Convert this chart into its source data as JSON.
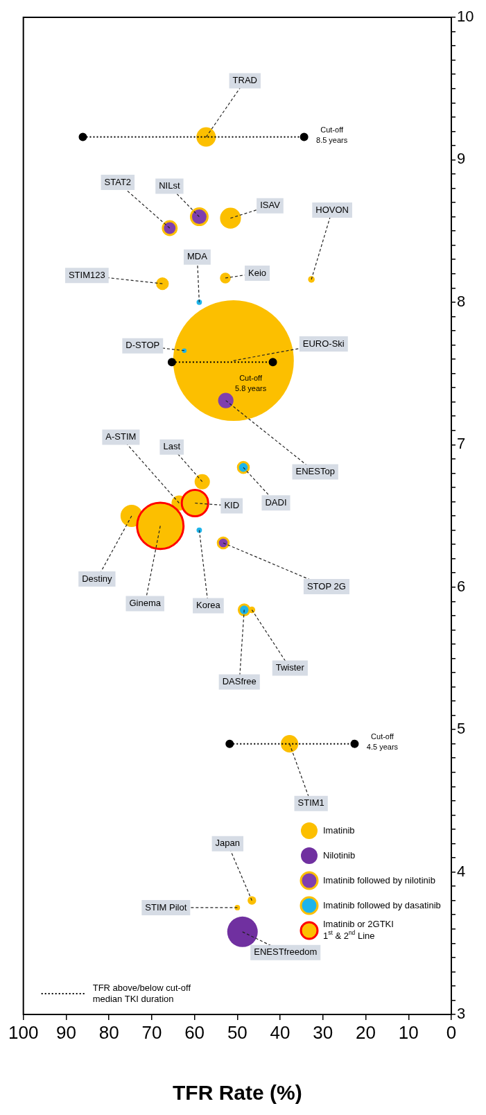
{
  "chart_data": {
    "type": "bubble",
    "xlabel": "TFR Rate (%)",
    "xlim": [
      100,
      0
    ],
    "ylim": [
      3,
      10
    ],
    "xticks": [
      100,
      90,
      80,
      70,
      60,
      50,
      40,
      30,
      20,
      10,
      0
    ],
    "yticks": [
      3,
      {
        "value": 3.1,
        "label": null
      },
      {
        "value": 3.2,
        "label": null
      },
      {
        "value": 3.3,
        "label": null
      },
      {
        "value": 3.4,
        "label": null
      },
      {
        "value": 3.5,
        "label": null
      },
      {
        "value": 3.6,
        "label": null
      },
      {
        "value": 3.7,
        "label": null
      },
      {
        "value": 3.8,
        "label": null
      },
      {
        "value": 3.9,
        "label": null
      },
      4,
      {
        "value": 4.1,
        "label": null
      },
      {
        "value": 4.2,
        "label": null
      },
      {
        "value": 4.3,
        "label": null
      },
      {
        "value": 4.4,
        "label": null
      },
      {
        "value": 4.5,
        "label": null
      },
      {
        "value": 4.6,
        "label": null
      },
      {
        "value": 4.7,
        "label": null
      },
      {
        "value": 4.8,
        "label": null
      },
      {
        "value": 4.9,
        "label": null
      },
      5,
      {
        "value": 5.1,
        "label": null
      },
      {
        "value": 5.2,
        "label": null
      },
      {
        "value": 5.3,
        "label": null
      },
      {
        "value": 5.4,
        "label": null
      },
      {
        "value": 5.5,
        "label": null
      },
      {
        "value": 5.6,
        "label": null
      },
      {
        "value": 5.7,
        "label": null
      },
      {
        "value": 5.8,
        "label": null
      },
      {
        "value": 5.9,
        "label": null
      },
      6,
      {
        "value": 6.1,
        "label": null
      },
      {
        "value": 6.2,
        "label": null
      },
      {
        "value": 6.3,
        "label": null
      },
      {
        "value": 6.4,
        "label": null
      },
      {
        "value": 6.5,
        "label": null
      },
      {
        "value": 6.6,
        "label": null
      },
      {
        "value": 6.7,
        "label": null
      },
      {
        "value": 6.8,
        "label": null
      },
      {
        "value": 6.9,
        "label": null
      },
      7,
      {
        "value": 7.1,
        "label": null
      },
      {
        "value": 7.2,
        "label": null
      },
      {
        "value": 7.3,
        "label": null
      },
      {
        "value": 7.4,
        "label": null
      },
      {
        "value": 7.5,
        "label": null
      },
      {
        "value": 7.6,
        "label": null
      },
      {
        "value": 7.7,
        "label": null
      },
      {
        "value": 7.8,
        "label": null
      },
      {
        "value": 7.9,
        "label": null
      },
      8,
      {
        "value": 8.1,
        "label": null
      },
      {
        "value": 8.2,
        "label": null
      },
      {
        "value": 8.3,
        "label": null
      },
      {
        "value": 8.4,
        "label": null
      },
      {
        "value": 8.5,
        "label": null
      },
      {
        "value": 8.6,
        "label": null
      },
      {
        "value": 8.7,
        "label": null
      },
      {
        "value": 8.8,
        "label": null
      },
      {
        "value": 8.9,
        "label": null
      },
      9,
      {
        "value": 9.1,
        "label": null
      },
      {
        "value": 9.2,
        "label": null
      },
      {
        "value": 9.3,
        "label": null
      },
      {
        "value": 9.4,
        "label": null
      },
      {
        "value": 9.5,
        "label": null
      },
      {
        "value": 9.6,
        "label": null
      },
      {
        "value": 9.7,
        "label": null
      },
      {
        "value": 9.8,
        "label": null
      },
      {
        "value": 9.9,
        "label": null
      },
      10
    ],
    "grid": false,
    "legend": "bottom right",
    "series": [
      {
        "name": "Imatinib",
        "color": "#fcbf00",
        "x": [
          57.3,
          51.6,
          67.5,
          52.8,
          32.7,
          50.9,
          58.2,
          63.6,
          74.7,
          46.6,
          37.8,
          46.6,
          50.0
        ],
        "values": [
          9.16,
          8.59,
          8.13,
          8.17,
          8.16,
          7.59,
          6.74,
          6.59,
          6.5,
          5.84,
          4.9,
          3.8,
          3.75
        ],
        "sizes": [
          0.026,
          0.03,
          0.011,
          0.008,
          0.003,
          1,
          0.016,
          0.016,
          0.034,
          0.003,
          0.021,
          0.005,
          0.002
        ]
      },
      {
        "name": "Nilotinib",
        "color": "#7030a0",
        "x": [
          48.8
        ],
        "values": [
          3.58
        ],
        "sizes": [
          0.064
        ]
      },
      {
        "name": "Imatinib followed by nilotinib",
        "color": "#7f3fae",
        "x": [
          65.8,
          58.9,
          52.7,
          53.3
        ],
        "values": [
          8.52,
          8.6,
          7.31,
          6.31
        ],
        "sizes": [
          0.013,
          0.019,
          0.021,
          0.008
        ]
      },
      {
        "name": "Imatinib followed by dasatinib",
        "color": "#1eb4ea",
        "x": [
          58.9,
          62.4,
          48.6,
          48.4,
          58.9
        ],
        "values": [
          8.0,
          7.66,
          6.84,
          5.84,
          6.4
        ],
        "sizes": [
          0.002,
          0.003,
          0.008,
          0.008,
          0.002
        ]
      },
      {
        "name": "Imatinib or 2GTKI\n1$^{st}$ & 2$^{nd}$ Line",
        "color": "#ff0000",
        "x": [
          68.0,
          59.9
        ],
        "values": [
          6.43,
          6.59
        ],
        "sizes": [
          0.148,
          0.048
        ]
      },
      {
        "name": "TFR above/below cut-off\nmedian TKI duration",
        "type": "line",
        "color": "#000000",
        "line_style": "dotted",
        "marker": "circle",
        "x": [
          51.8,
          22.6,
          null,
          65.3,
          41.7,
          null,
          86.1,
          34.4
        ],
        "values": [
          4.9,
          4.9,
          null,
          7.58,
          7.58,
          null,
          9.16,
          9.16
        ]
      }
    ],
    "annotations": [
      {
        "text": "TRAD",
        "x": 57.3,
        "y": 9.16
      },
      {
        "text": "STAT2",
        "x": 65.8,
        "y": 8.52
      },
      {
        "text": "NILst",
        "x": 58.9,
        "y": 8.6
      },
      {
        "text": "ISAV",
        "x": 51.6,
        "y": 8.59
      },
      {
        "text": "HOVON",
        "x": 32.7,
        "y": 8.16
      },
      {
        "text": "STIM123",
        "x": 67.5,
        "y": 8.13
      },
      {
        "text": "MDA",
        "x": 58.9,
        "y": 8.0
      },
      {
        "text": "Keio",
        "x": 52.8,
        "y": 8.17
      },
      {
        "text": "D-STOP",
        "x": 62.4,
        "y": 7.66
      },
      {
        "text": "EURO-Ski",
        "x": 50.9,
        "y": 7.59
      },
      {
        "text": "A-STIM",
        "x": 63.6,
        "y": 6.59
      },
      {
        "text": "Last",
        "x": 58.2,
        "y": 6.74
      },
      {
        "text": "KID",
        "x": 59.9,
        "y": 6.59
      },
      {
        "text": "DADI",
        "x": 48.6,
        "y": 6.84
      },
      {
        "text": "ENESTop",
        "x": 52.7,
        "y": 7.31
      },
      {
        "text": "Destiny",
        "x": 74.7,
        "y": 6.5
      },
      {
        "text": "Ginema",
        "x": 68.0,
        "y": 6.43
      },
      {
        "text": "Korea",
        "x": 58.9,
        "y": 6.4
      },
      {
        "text": "STOP 2G",
        "x": 53.3,
        "y": 6.31
      },
      {
        "text": "DASfree",
        "x": 48.4,
        "y": 5.84
      },
      {
        "text": "Twister",
        "x": 46.6,
        "y": 5.84
      },
      {
        "text": "STIM1",
        "x": 37.8,
        "y": 4.9
      },
      {
        "text": "Japan",
        "x": 46.6,
        "y": 3.8
      },
      {
        "text": "STIM Pilot",
        "x": 50.0,
        "y": 3.75
      },
      {
        "text": "ENESTfreedom",
        "x": 48.8,
        "y": 3.58
      },
      {
        "text": "Cut-off\n4.5 years",
        "x": 22.6,
        "y": 4.9
      },
      {
        "text": "Cut-off\n5.8 years",
        "x": 41.7,
        "y": 7.58
      },
      {
        "text": "Cut-off\n8.5 years",
        "x": 34.4,
        "y": 9.16
      }
    ]
  }
}
